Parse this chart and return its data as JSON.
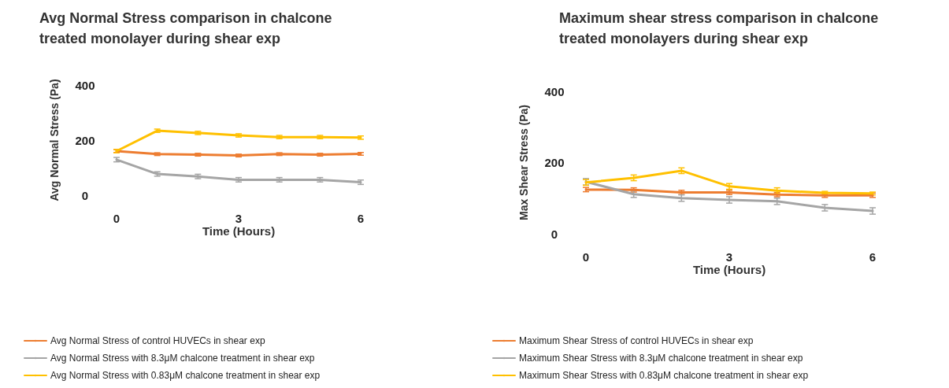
{
  "chart_data": [
    {
      "type": "line",
      "title": "Avg Normal Stress comparison in chalcone treated monolayer during shear exp",
      "xlabel": "Time (Hours)",
      "ylabel": "Avg Normal Stress (Pa)",
      "x": [
        0,
        1,
        2,
        3,
        4,
        5,
        6
      ],
      "xlim": [
        0,
        6
      ],
      "xticks": [
        0,
        3,
        6
      ],
      "ylim": [
        0,
        400
      ],
      "yticks": [
        0,
        200,
        400
      ],
      "grid": false,
      "legend": "bottom left",
      "marker": "none",
      "line_style": "solid",
      "series": [
        {
          "name": "Avg Normal Stress of control HUVECs in shear exp",
          "color": "#ed7d31",
          "values": [
            160,
            149,
            147,
            144,
            149,
            147,
            150
          ],
          "errors": [
            5,
            5,
            5,
            5,
            5,
            5,
            5
          ]
        },
        {
          "name": "Avg Normal Stress with 8.3μM chalcone treatment in shear exp",
          "color": "#a5a5a5",
          "values": [
            129,
            77,
            68,
            56,
            56,
            56,
            47
          ],
          "errors": [
            8,
            8,
            8,
            8,
            8,
            8,
            8
          ]
        },
        {
          "name": "Avg Normal Stress with 0.83μM chalcone treatment in shear exp",
          "color": "#ffc000",
          "values": [
            160,
            234,
            226,
            217,
            211,
            211,
            209
          ],
          "errors": [
            6,
            6,
            6,
            6,
            6,
            6,
            6
          ]
        }
      ]
    },
    {
      "type": "line",
      "title": "Maximum shear stress comparison in chalcone treated monolayers during shear exp",
      "xlabel": "Time (Hours)",
      "ylabel": "Max Shear Stress (Pa)",
      "x": [
        0,
        1,
        2,
        3,
        4,
        5,
        6
      ],
      "xlim": [
        0,
        6
      ],
      "xticks": [
        0,
        3,
        6
      ],
      "ylim": [
        0,
        400
      ],
      "yticks": [
        0,
        200,
        400
      ],
      "grid": false,
      "legend": "bottom left",
      "marker": "none",
      "line_style": "solid",
      "series": [
        {
          "name": "Maximum Shear Stress of control HUVECs in shear exp",
          "color": "#ed7d31",
          "values": [
            124,
            123,
            116,
            116,
            110,
            108,
            108
          ],
          "errors": [
            6,
            6,
            6,
            6,
            6,
            6,
            6
          ]
        },
        {
          "name": "Maximum Shear Stress with 8.3μM chalcone treatment in shear exp",
          "color": "#a5a5a5",
          "values": [
            146,
            111,
            100,
            95,
            91,
            73,
            64
          ],
          "errors": [
            9,
            9,
            9,
            9,
            9,
            9,
            9
          ]
        },
        {
          "name": "Maximum Shear Stress with 0.83μM chalcone treatment in shear exp",
          "color": "#ffc000",
          "values": [
            144,
            157,
            177,
            133,
            121,
            115,
            113
          ],
          "errors": [
            8,
            8,
            8,
            8,
            8,
            4,
            4
          ]
        }
      ]
    }
  ]
}
